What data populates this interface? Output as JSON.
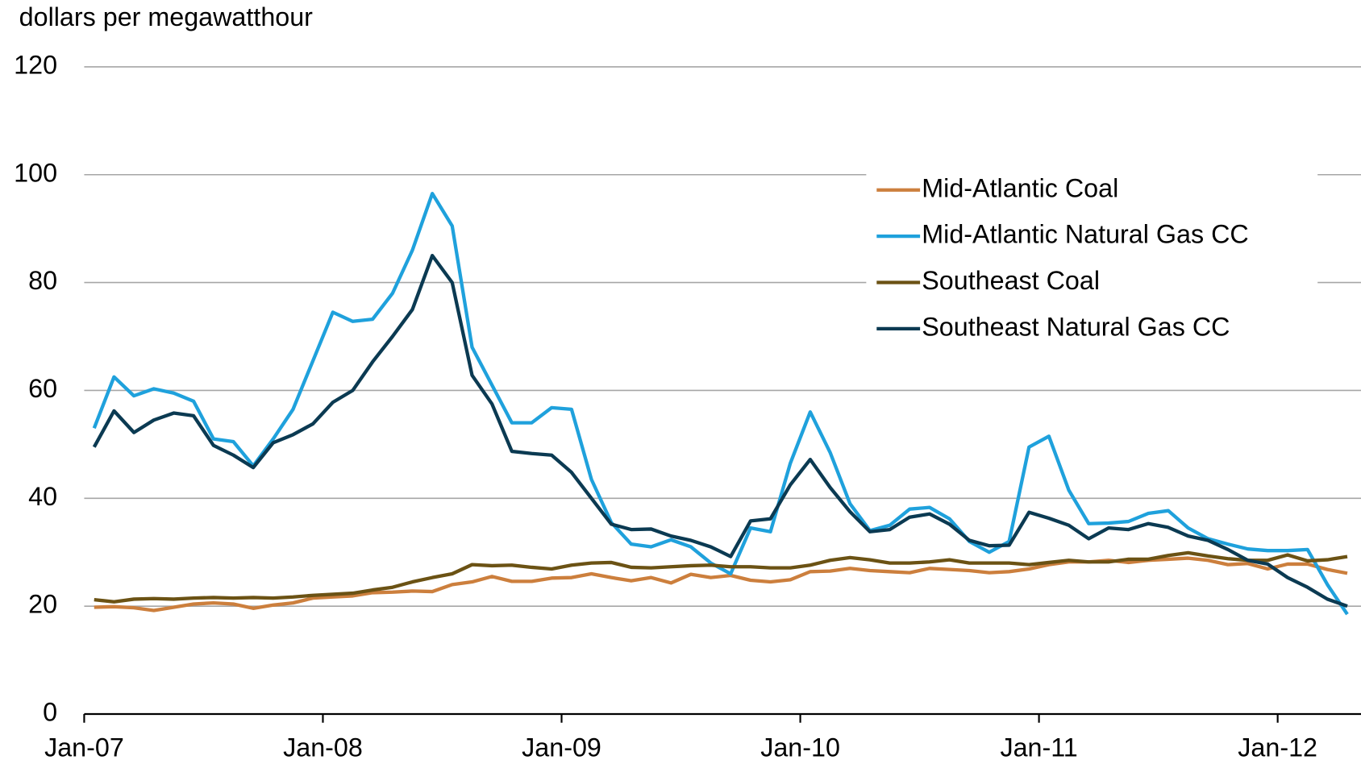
{
  "chart_data": {
    "type": "line",
    "y_label": "dollars per megawatthour",
    "categories": [
      "Jan-07",
      null,
      null,
      null,
      null,
      null,
      null,
      null,
      null,
      null,
      null,
      null,
      "Jan-08",
      null,
      null,
      null,
      null,
      null,
      null,
      null,
      null,
      null,
      null,
      null,
      "Jan-09",
      null,
      null,
      null,
      null,
      null,
      null,
      null,
      null,
      null,
      null,
      null,
      "Jan-10",
      null,
      null,
      null,
      null,
      null,
      null,
      null,
      null,
      null,
      null,
      null,
      "Jan-11",
      null,
      null,
      null,
      null,
      null,
      null,
      null,
      null,
      null,
      null,
      null,
      "Jan-12",
      null,
      null,
      null
    ],
    "ylim": [
      0,
      120
    ],
    "yticks": [
      0,
      20,
      40,
      60,
      80,
      100,
      120
    ],
    "grid": true,
    "legend": "upper right",
    "series": [
      {
        "name": "Mid-Atlantic Coal",
        "color": "#cc7f3d",
        "values": [
          19.8,
          19.9,
          19.7,
          19.2,
          19.8,
          20.4,
          20.6,
          20.4,
          19.6,
          20.2,
          20.6,
          21.5,
          21.7,
          21.9,
          22.5,
          22.6,
          22.8,
          22.7,
          24,
          24.5,
          25.5,
          24.6,
          24.6,
          25.2,
          25.3,
          26,
          25.3,
          24.7,
          25.3,
          24.3,
          25.9,
          25.3,
          25.7,
          24.8,
          24.5,
          24.9,
          26.4,
          26.5,
          27,
          26.6,
          26.4,
          26.2,
          27,
          26.8,
          26.6,
          26.2,
          26.4,
          26.9,
          27.7,
          28.2,
          28.2,
          28.5,
          28.1,
          28.5,
          28.7,
          28.9,
          28.5,
          27.7,
          27.9,
          26.9,
          27.8,
          27.8,
          26.8,
          26.1
        ]
      },
      {
        "name": "Mid-Atlantic Natural Gas CC",
        "color": "#1fa1dc",
        "values": [
          53,
          62.5,
          59,
          60.3,
          59.5,
          58,
          51,
          50.5,
          46,
          51,
          56.5,
          65.5,
          74.5,
          72.8,
          73.2,
          78,
          86,
          96.5,
          90.5,
          68,
          61,
          54,
          54,
          56.8,
          56.5,
          43.5,
          35.5,
          31.5,
          31,
          32.3,
          31,
          28,
          26,
          34.5,
          33.8,
          46.5,
          56,
          48.5,
          39,
          34,
          35,
          38,
          38.3,
          36.2,
          32,
          30,
          32,
          49.5,
          51.5,
          41.5,
          35.3,
          35.4,
          35.7,
          37.2,
          37.7,
          34.5,
          32.5,
          31.5,
          30.6,
          30.3,
          30.3,
          30.5,
          24,
          18.5
        ]
      },
      {
        "name": "Southeast Coal",
        "color": "#6b5214",
        "values": [
          21.2,
          20.8,
          21.3,
          21.4,
          21.3,
          21.5,
          21.6,
          21.5,
          21.6,
          21.5,
          21.7,
          22,
          22.2,
          22.4,
          23,
          23.5,
          24.5,
          25.3,
          26,
          27.7,
          27.5,
          27.6,
          27.2,
          26.9,
          27.6,
          28,
          28.1,
          27.2,
          27.1,
          27.3,
          27.5,
          27.6,
          27.3,
          27.3,
          27.1,
          27.1,
          27.6,
          28.5,
          29,
          28.6,
          28,
          28,
          28.2,
          28.6,
          28,
          28,
          28,
          27.7,
          28.1,
          28.5,
          28.2,
          28.2,
          28.7,
          28.7,
          29.4,
          29.9,
          29.3,
          28.8,
          28.5,
          28.5,
          29.5,
          28.4,
          28.6,
          29.2
        ]
      },
      {
        "name": "Southeast Natural Gas CC",
        "color": "#0b3a52",
        "values": [
          49.5,
          56.2,
          52.2,
          54.5,
          55.8,
          55.3,
          49.8,
          48,
          45.7,
          50.3,
          51.8,
          53.8,
          57.8,
          60,
          65.3,
          70,
          75,
          85,
          80,
          62.8,
          57.5,
          48.7,
          48.3,
          48,
          44.8,
          40,
          35.2,
          34.2,
          34.3,
          33,
          32.2,
          31,
          29.2,
          35.8,
          36.2,
          42.5,
          47.2,
          42,
          37.5,
          33.8,
          34.2,
          36.5,
          37.1,
          35.2,
          32.2,
          31.2,
          31.3,
          37.4,
          36.3,
          35,
          32.5,
          34.5,
          34.2,
          35.3,
          34.6,
          33,
          32.2,
          30.5,
          28.5,
          27.8,
          25.3,
          23.5,
          21.3,
          20
        ]
      }
    ]
  }
}
